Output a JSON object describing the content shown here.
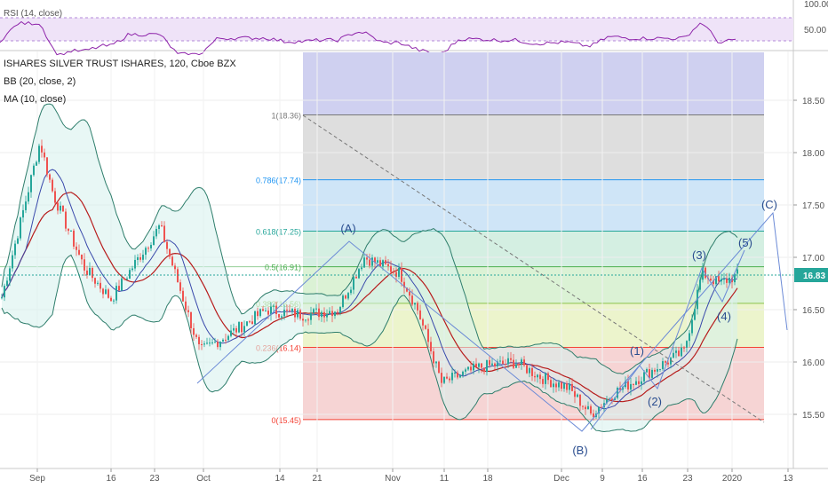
{
  "rsi_pane": {
    "label": "RSI (14, close)",
    "axis_ticks": [
      "100.00",
      "50.00"
    ],
    "line_color": "#8e24aa",
    "band_color": "#e6d5f5"
  },
  "main_pane": {
    "title": "ISHARES SILVER TRUST ISHARES, 120, Cboe BZX",
    "indicators": [
      "BB (20, close, 2)",
      "MA (10, close)"
    ],
    "price_axis_ticks": [
      "18.50",
      "18.00",
      "17.50",
      "17.00",
      "16.50",
      "16.00",
      "15.50"
    ],
    "last_price": "16.83",
    "last_price_color": "#26a69a"
  },
  "time_axis": [
    "Sep",
    "16",
    "23",
    "Oct",
    "14",
    "21",
    "Nov",
    "11",
    "18",
    "Dec",
    "9",
    "16",
    "23",
    "2020",
    "13"
  ],
  "fib_levels": [
    {
      "label": "1(18.36)",
      "value": 18.36,
      "color": "#787878",
      "fill": "#dedede"
    },
    {
      "label": "0.786(17.74)",
      "value": 17.74,
      "color": "#2196f3",
      "fill": "#cfe5f7"
    },
    {
      "label": "0.618(17.25)",
      "value": 17.25,
      "color": "#26a69a",
      "fill": "#d4efe2"
    },
    {
      "label": "0.5(16.91)",
      "value": 16.91,
      "color": "#4caf50",
      "fill": "#dbf2d5"
    },
    {
      "label": "0.382(16.56)",
      "value": 16.56,
      "color": "#8bc34a",
      "fill": "#ecf4cc"
    },
    {
      "label": "0.236(16.14)",
      "value": 16.14,
      "color": "#f44336",
      "fill": "#f6d4d4"
    },
    {
      "label": "0(15.45)",
      "value": 15.45,
      "color": "#f44336",
      "fill": ""
    }
  ],
  "wave_labels": [
    "(A)",
    "(B)",
    "(C)",
    "(1)",
    "(2)",
    "(3)",
    "(4)",
    "(5)"
  ],
  "chart_data": {
    "type": "candlestick",
    "title": "ISHARES SILVER TRUST ISHARES, 120, Cboe BZX",
    "ylim": [
      15.3,
      18.7
    ],
    "close_series": [
      {
        "date": "Aug 30",
        "close": 16.55
      },
      {
        "date": "Sep 4",
        "close": 17.3
      },
      {
        "date": "Sep 5",
        "close": 18.1
      },
      {
        "date": "Sep 9",
        "close": 17.6
      },
      {
        "date": "Sep 13",
        "close": 16.9
      },
      {
        "date": "Sep 18",
        "close": 16.6
      },
      {
        "date": "Sep 24",
        "close": 17.3
      },
      {
        "date": "Sep 30",
        "close": 16.1
      },
      {
        "date": "Oct 3",
        "close": 16.25
      },
      {
        "date": "Oct 10",
        "close": 16.5
      },
      {
        "date": "Oct 17",
        "close": 16.45
      },
      {
        "date": "Oct 23",
        "close": 16.5
      },
      {
        "date": "Oct 28",
        "close": 17.0
      },
      {
        "date": "Nov 1",
        "close": 16.85
      },
      {
        "date": "Nov 6",
        "close": 16.5
      },
      {
        "date": "Nov 11",
        "close": 15.8
      },
      {
        "date": "Nov 18",
        "close": 15.95
      },
      {
        "date": "Nov 22",
        "close": 16.0
      },
      {
        "date": "Nov 27",
        "close": 15.85
      },
      {
        "date": "Dec 3",
        "close": 15.75
      },
      {
        "date": "Dec 6",
        "close": 15.5
      },
      {
        "date": "Dec 10",
        "close": 15.7
      },
      {
        "date": "Dec 16",
        "close": 15.95
      },
      {
        "date": "Dec 20",
        "close": 16.1
      },
      {
        "date": "Dec 24",
        "close": 16.85
      },
      {
        "date": "Dec 27",
        "close": 16.75
      },
      {
        "date": "Dec 31",
        "close": 16.83
      }
    ],
    "indicators": [
      "BB (20, close, 2)",
      "MA (10, close)"
    ],
    "last_price": 16.83
  }
}
